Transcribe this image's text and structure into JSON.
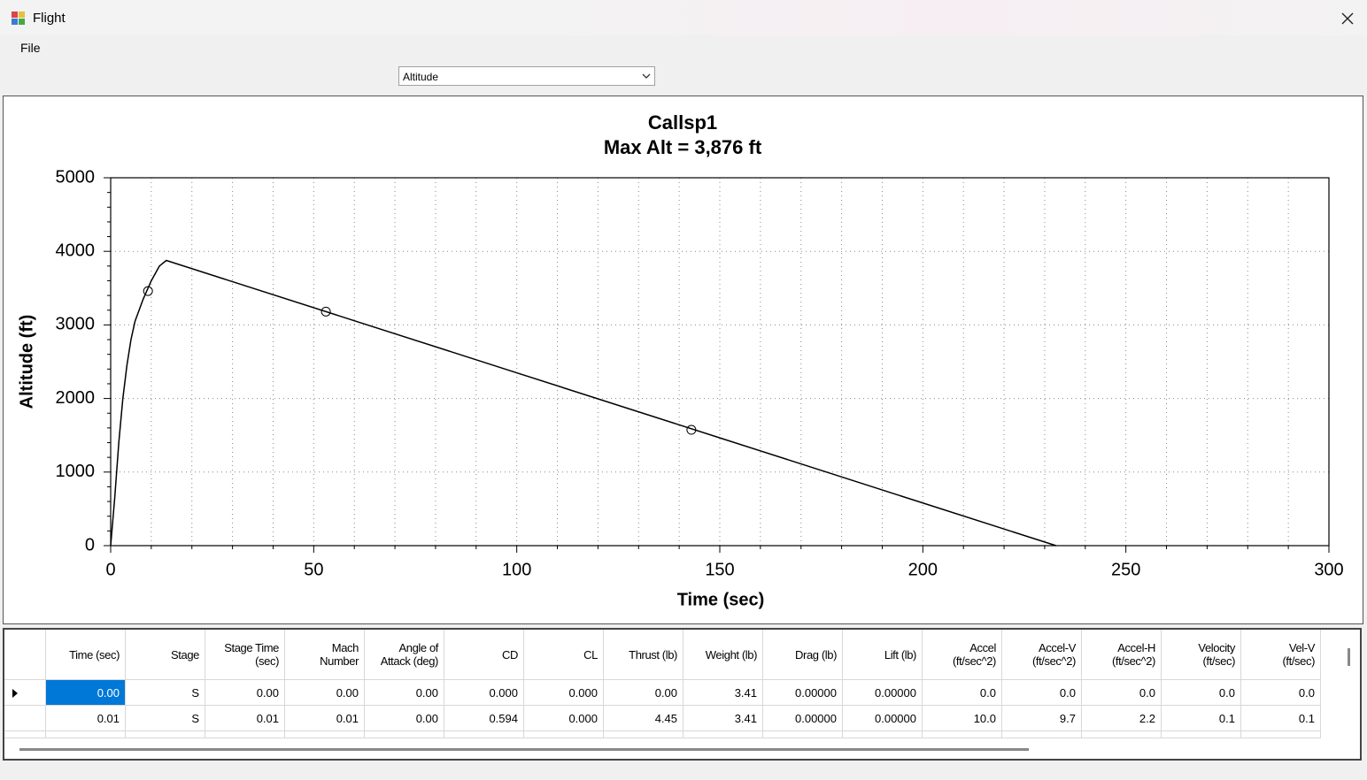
{
  "window": {
    "title": "Flight",
    "menu": [
      "File"
    ],
    "dropdown": "Altitude"
  },
  "chart_data": {
    "type": "line",
    "title": "Callsp1",
    "subtitle": "Max Alt = 3,876 ft",
    "x_label": "Time (sec)",
    "y_label": "Altitude (ft)",
    "x": [
      0,
      1,
      2,
      3,
      4,
      5,
      6,
      8,
      10,
      12,
      13.7,
      60,
      100,
      150,
      200,
      232.8
    ],
    "values": [
      0,
      650,
      1400,
      2000,
      2450,
      2800,
      3050,
      3350,
      3600,
      3800,
      3876,
      3057,
      2349,
      1465,
      580,
      0
    ],
    "marker_x": [
      9.2,
      53,
      143
    ],
    "marker_values": [
      3460,
      3181,
      1574
    ],
    "color": "#000000",
    "xlim": [
      0,
      300
    ],
    "ylim": [
      0,
      5000
    ],
    "xticks": [
      0,
      50,
      100,
      150,
      200,
      250,
      300
    ],
    "yticks": [
      0,
      1000,
      2000,
      3000,
      4000,
      5000
    ],
    "grid": true
  },
  "table": {
    "columns": [
      "Time (sec)",
      "Stage",
      "Stage Time\n(sec)",
      "Mach\nNumber",
      "Angle of\nAttack (deg)",
      "CD",
      "CL",
      "Thrust (lb)",
      "Weight (lb)",
      "Drag (lb)",
      "Lift (lb)",
      "Accel\n(ft/sec^2)",
      "Accel-V\n(ft/sec^2)",
      "Accel-H\n(ft/sec^2)",
      "Velocity\n(ft/sec)",
      "Vel-V\n(ft/sec)"
    ],
    "rows": [
      [
        "0.00",
        "S",
        "0.00",
        "0.00",
        "0.00",
        "0.000",
        "0.000",
        "0.00",
        "3.41",
        "0.00000",
        "0.00000",
        "0.0",
        "0.0",
        "0.0",
        "0.0",
        "0.0"
      ],
      [
        "0.01",
        "S",
        "0.01",
        "0.01",
        "0.00",
        "0.594",
        "0.000",
        "4.45",
        "3.41",
        "0.00000",
        "0.00000",
        "10.0",
        "9.7",
        "2.2",
        "0.1",
        "0.1"
      ]
    ]
  }
}
